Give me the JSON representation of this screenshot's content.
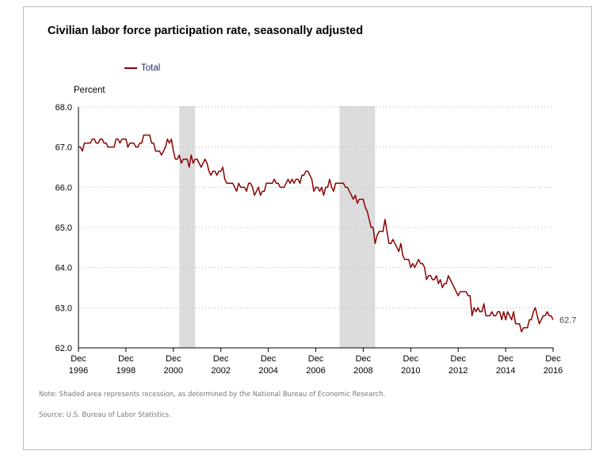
{
  "chart_data": {
    "type": "line",
    "title": "Civilian labor force participation rate, seasonally adjusted",
    "ylabel": "Percent",
    "xlabel": "",
    "ylim": [
      62.0,
      68.0
    ],
    "y_ticks": [
      "68.0",
      "67.0",
      "66.0",
      "65.0",
      "64.0",
      "63.0",
      "62.0"
    ],
    "x_ticks": [
      {
        "month": "Dec",
        "year": "1996"
      },
      {
        "month": "Dec",
        "year": "1998"
      },
      {
        "month": "Dec",
        "year": "2000"
      },
      {
        "month": "Dec",
        "year": "2002"
      },
      {
        "month": "Dec",
        "year": "2004"
      },
      {
        "month": "Dec",
        "year": "2006"
      },
      {
        "month": "Dec",
        "year": "2008"
      },
      {
        "month": "Dec",
        "year": "2010"
      },
      {
        "month": "Dec",
        "year": "2012"
      },
      {
        "month": "Dec",
        "year": "2014"
      },
      {
        "month": "Dec",
        "year": "2016"
      }
    ],
    "grid": true,
    "legend": "top-left",
    "recessions": [
      {
        "start": "2001-03",
        "end": "2001-11"
      },
      {
        "start": "2007-12",
        "end": "2009-06"
      }
    ],
    "series": [
      {
        "name": "Total",
        "color": "#8b0000",
        "last_value_label": "62.7",
        "start": "1996-12",
        "frequency": "monthly",
        "values": [
          67.0,
          67.0,
          66.9,
          67.1,
          67.1,
          67.1,
          67.1,
          67.2,
          67.2,
          67.1,
          67.1,
          67.2,
          67.2,
          67.1,
          67.1,
          67.0,
          67.0,
          67.0,
          67.0,
          67.2,
          67.2,
          67.1,
          67.2,
          67.2,
          67.2,
          67.0,
          67.1,
          67.1,
          67.1,
          67.0,
          67.0,
          67.1,
          67.1,
          67.3,
          67.3,
          67.3,
          67.3,
          67.1,
          67.1,
          66.9,
          66.9,
          66.9,
          66.8,
          66.9,
          67.0,
          67.2,
          67.1,
          67.2,
          66.9,
          66.7,
          66.7,
          66.8,
          66.6,
          66.7,
          66.7,
          66.7,
          66.5,
          66.8,
          66.6,
          66.7,
          66.7,
          66.6,
          66.5,
          66.6,
          66.7,
          66.6,
          66.4,
          66.3,
          66.4,
          66.4,
          66.3,
          66.4,
          66.4,
          66.5,
          66.2,
          66.1,
          66.1,
          66.1,
          66.1,
          66.0,
          65.9,
          66.1,
          66.0,
          66.0,
          66.0,
          65.9,
          66.1,
          66.1,
          66.0,
          65.8,
          65.9,
          66.0,
          65.8,
          65.9,
          65.9,
          66.1,
          66.1,
          66.1,
          66.1,
          66.2,
          66.1,
          66.1,
          66.0,
          66.0,
          66.0,
          66.1,
          66.2,
          66.1,
          66.2,
          66.1,
          66.2,
          66.2,
          66.1,
          66.3,
          66.3,
          66.4,
          66.4,
          66.3,
          66.2,
          65.9,
          66.0,
          66.0,
          65.9,
          66.0,
          65.8,
          66.0,
          66.0,
          66.2,
          66.0,
          65.9,
          66.1,
          66.1,
          66.1,
          66.1,
          66.1,
          66.0,
          66.0,
          65.9,
          65.8,
          65.7,
          65.8,
          65.6,
          65.7,
          65.7,
          65.7,
          65.5,
          65.4,
          65.2,
          65.0,
          65.0,
          64.6,
          64.8,
          64.9,
          64.9,
          64.9,
          65.2,
          64.9,
          64.6,
          64.6,
          64.7,
          64.6,
          64.5,
          64.4,
          64.6,
          64.3,
          64.2,
          64.2,
          64.2,
          64.0,
          64.1,
          64.0,
          64.1,
          64.2,
          64.1,
          64.1,
          64.0,
          63.7,
          63.8,
          63.8,
          63.7,
          63.7,
          63.8,
          63.6,
          63.7,
          63.5,
          63.6,
          63.6,
          63.8,
          63.7,
          63.6,
          63.5,
          63.4,
          63.3,
          63.4,
          63.4,
          63.4,
          63.4,
          63.3,
          63.3,
          62.8,
          63.0,
          62.9,
          63.0,
          62.9,
          62.9,
          63.1,
          62.8,
          62.8,
          62.8,
          62.9,
          62.8,
          62.8,
          62.9,
          62.9,
          62.7,
          62.9,
          62.7,
          62.9,
          62.8,
          62.7,
          62.9,
          62.6,
          62.6,
          62.6,
          62.4,
          62.5,
          62.5,
          62.5,
          62.7,
          62.7,
          62.9,
          63.0,
          62.8,
          62.6,
          62.7,
          62.8,
          62.8,
          62.9,
          62.8,
          62.8,
          62.7
        ]
      }
    ]
  },
  "footnotes": {
    "note": "Note: Shaded area represents recession, as determined by the National Bureau of Economic Research.",
    "source": "Source: U.S. Bureau of Labor Statistics."
  }
}
